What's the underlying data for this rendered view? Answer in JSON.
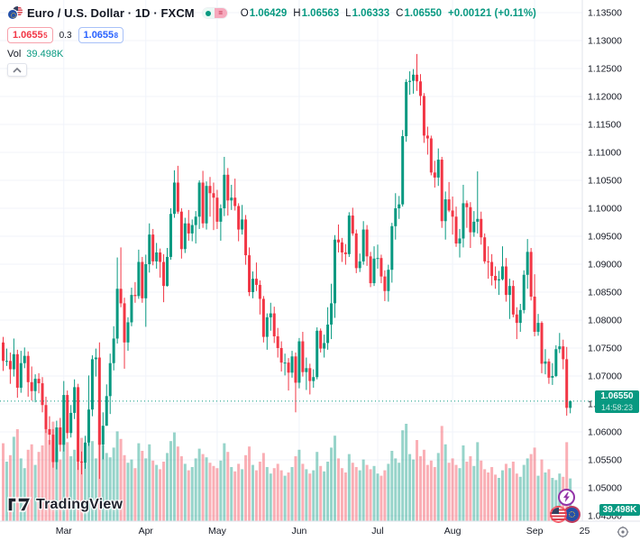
{
  "header": {
    "title": "Euro / U.S. Dollar · 1D · FXCM",
    "status_glyph": "=",
    "ohlc": {
      "o_label": "O",
      "o_value": "1.06429",
      "h_label": "H",
      "h_value": "1.06563",
      "l_label": "L",
      "l_value": "1.06333",
      "c_label": "C",
      "c_value": "1.06550",
      "change": "+0.00121 (+0.11%)"
    },
    "sell": {
      "price": "1.0655",
      "sup": "5"
    },
    "spread": "0.3",
    "buy": {
      "price": "1.0655",
      "sup": "8"
    },
    "vol_label": "Vol",
    "vol_value": "39.498K"
  },
  "price_label": {
    "price": "1.06550",
    "countdown": "14:58:23"
  },
  "vol_axis_label": "39.498K",
  "watermark": "TradingView",
  "colors": {
    "up": "#089981",
    "down": "#f23645",
    "vol_up": "rgba(8,153,129,0.42)",
    "vol_down": "rgba(242,54,69,0.40)",
    "grid": "#f0f3fa",
    "axis_border": "#e0e3eb",
    "axis_text": "#131722",
    "buy_blue": "#2962ff",
    "sell_red": "#f23645",
    "label_bg": "#089981"
  },
  "chart_data": {
    "type": "candlestick",
    "title": "Euro / U.S. Dollar, 1D, FXCM",
    "y_axis_range": [
      1.045,
      1.135
    ],
    "last_price": 1.0655,
    "y_ticks": [
      "1.13500",
      "1.13000",
      "1.12500",
      "1.12000",
      "1.11500",
      "1.11000",
      "1.10500",
      "1.10000",
      "1.09500",
      "1.09000",
      "1.08500",
      "1.08000",
      "1.07500",
      "1.07000",
      "1.06500",
      "1.06000",
      "1.05500",
      "1.05000",
      "1.04500"
    ],
    "time_ticks": [
      {
        "label": "Mar",
        "index": 17
      },
      {
        "label": "Apr",
        "index": 40
      },
      {
        "label": "May",
        "index": 60
      },
      {
        "label": "Jun",
        "index": 83
      },
      {
        "label": "Jul",
        "index": 105
      },
      {
        "label": "Aug",
        "index": 126
      },
      {
        "label": "Sep",
        "index": 149
      },
      {
        "label": "25",
        "index": 163
      }
    ],
    "candles": [
      [
        1.076,
        1.077,
        1.0709,
        1.0727
      ],
      [
        1.0727,
        1.0749,
        1.0718,
        1.0727
      ],
      [
        1.0727,
        1.0742,
        1.0686,
        1.0712
      ],
      [
        1.0712,
        1.0767,
        1.0699,
        1.0739
      ],
      [
        1.0739,
        1.0747,
        1.0661,
        1.0679
      ],
      [
        1.0679,
        1.0745,
        1.067,
        1.0723
      ],
      [
        1.0723,
        1.0751,
        1.0714,
        1.0736
      ],
      [
        1.0736,
        1.0744,
        1.0663,
        1.0689
      ],
      [
        1.0689,
        1.0717,
        1.0656,
        1.0673
      ],
      [
        1.0673,
        1.0703,
        1.0653,
        1.0695
      ],
      [
        1.0695,
        1.0705,
        1.0669,
        1.0687
      ],
      [
        1.0687,
        1.0698,
        1.0635,
        1.0648
      ],
      [
        1.0648,
        1.0663,
        1.0598,
        1.0605
      ],
      [
        1.0605,
        1.0628,
        1.0577,
        1.0595
      ],
      [
        1.0595,
        1.0605,
        1.0536,
        1.0546
      ],
      [
        1.0546,
        1.062,
        1.0533,
        1.0608
      ],
      [
        1.0608,
        1.0625,
        1.0565,
        1.0577
      ],
      [
        1.0577,
        1.0691,
        1.0565,
        1.0666
      ],
      [
        1.0666,
        1.0674,
        1.0588,
        1.0598
      ],
      [
        1.0598,
        1.0648,
        1.059,
        1.0634
      ],
      [
        1.0634,
        1.0694,
        1.0623,
        1.068
      ],
      [
        1.068,
        1.0686,
        1.0532,
        1.0547
      ],
      [
        1.0547,
        1.0565,
        1.0524,
        1.0545
      ],
      [
        1.0545,
        1.0593,
        1.0534,
        1.0581
      ],
      [
        1.0581,
        1.0701,
        1.0575,
        1.064
      ],
      [
        1.064,
        1.0737,
        1.0628,
        1.073
      ],
      [
        1.073,
        1.0749,
        1.0699,
        1.0733
      ],
      [
        1.0733,
        1.076,
        1.0516,
        1.0577
      ],
      [
        1.0577,
        1.0635,
        1.0551,
        1.0611
      ],
      [
        1.0611,
        1.0685,
        1.0611,
        1.0664
      ],
      [
        1.0664,
        1.074,
        1.0632,
        1.0723
      ],
      [
        1.0723,
        1.0789,
        1.071,
        1.0767
      ],
      [
        1.0767,
        1.0912,
        1.0758,
        1.0856
      ],
      [
        1.0856,
        1.093,
        1.0823,
        1.083
      ],
      [
        1.083,
        1.084,
        1.0713,
        1.076
      ],
      [
        1.076,
        1.0805,
        1.0745,
        1.0796
      ],
      [
        1.0796,
        1.0858,
        1.0789,
        1.0845
      ],
      [
        1.0845,
        1.0868,
        1.0831,
        1.0843
      ],
      [
        1.0843,
        1.0926,
        1.0838,
        1.0904
      ],
      [
        1.0904,
        1.0913,
        1.0831,
        1.0839
      ],
      [
        1.0839,
        1.0917,
        1.0788,
        1.09
      ],
      [
        1.09,
        1.0973,
        1.0885,
        1.0953
      ],
      [
        1.0953,
        1.0963,
        1.0898,
        1.0905
      ],
      [
        1.0905,
        1.0938,
        1.0892,
        1.0921
      ],
      [
        1.0921,
        1.0928,
        1.0876,
        1.0904
      ],
      [
        1.0904,
        1.0918,
        1.0832,
        1.0861
      ],
      [
        1.0861,
        1.0929,
        1.086,
        1.0913
      ],
      [
        1.0913,
        1.1,
        1.0908,
        1.099
      ],
      [
        1.099,
        1.1068,
        1.0983,
        1.1046
      ],
      [
        1.1046,
        1.1076,
        1.099,
        1.0994
      ],
      [
        1.0994,
        1.1,
        1.091,
        1.0927
      ],
      [
        1.0927,
        1.0983,
        1.092,
        1.0973
      ],
      [
        1.0973,
        1.0997,
        1.0942,
        1.0955
      ],
      [
        1.0955,
        1.098,
        1.0941,
        1.097
      ],
      [
        1.097,
        1.0995,
        1.0937,
        1.0985
      ],
      [
        1.0985,
        1.105,
        1.0963,
        1.1046
      ],
      [
        1.1046,
        1.1067,
        1.0965,
        1.0973
      ],
      [
        1.0973,
        1.1048,
        1.0962,
        1.104
      ],
      [
        1.104,
        1.1056,
        1.0985,
        1.1027
      ],
      [
        1.1027,
        1.1046,
        1.0961,
        1.1019
      ],
      [
        1.1019,
        1.1033,
        1.0963,
        1.0976
      ],
      [
        1.0976,
        1.1007,
        1.0942,
        1.1
      ],
      [
        1.1,
        1.1092,
        1.0986,
        1.106
      ],
      [
        1.106,
        1.1072,
        1.0987,
        1.1014
      ],
      [
        1.1014,
        1.1042,
        1.0997,
        1.1019
      ],
      [
        1.1019,
        1.1053,
        1.0996,
        1.1004
      ],
      [
        1.1004,
        1.1009,
        1.0941,
        1.0962
      ],
      [
        1.0962,
        1.1006,
        1.0953,
        1.098
      ],
      [
        1.098,
        1.0988,
        1.0899,
        1.0916
      ],
      [
        1.0916,
        1.093,
        1.0843,
        1.085
      ],
      [
        1.085,
        1.0887,
        1.0839,
        1.0874
      ],
      [
        1.0874,
        1.0903,
        1.0852,
        1.0863
      ],
      [
        1.0863,
        1.0871,
        1.081,
        1.0838
      ],
      [
        1.0838,
        1.0843,
        1.076,
        1.077
      ],
      [
        1.077,
        1.0812,
        1.0747,
        1.0805
      ],
      [
        1.0805,
        1.0831,
        1.0781,
        1.0812
      ],
      [
        1.0812,
        1.0824,
        1.0759,
        1.0771
      ],
      [
        1.0771,
        1.0786,
        1.0733,
        1.075
      ],
      [
        1.075,
        1.0762,
        1.0708,
        1.0724
      ],
      [
        1.0724,
        1.074,
        1.0701,
        1.0724
      ],
      [
        1.0724,
        1.0732,
        1.0674,
        1.0706
      ],
      [
        1.0706,
        1.0745,
        1.0697,
        1.0735
      ],
      [
        1.0735,
        1.0742,
        1.0635,
        1.0688
      ],
      [
        1.0688,
        1.0768,
        1.0678,
        1.0762
      ],
      [
        1.0762,
        1.0779,
        1.0699,
        1.0707
      ],
      [
        1.0707,
        1.0733,
        1.0675,
        1.0714
      ],
      [
        1.0714,
        1.0722,
        1.0667,
        1.0691
      ],
      [
        1.0691,
        1.0712,
        1.0679,
        1.0698
      ],
      [
        1.0698,
        1.0787,
        1.0694,
        1.0781
      ],
      [
        1.0781,
        1.0785,
        1.0742,
        1.0749
      ],
      [
        1.0749,
        1.0774,
        1.0733,
        1.0759
      ],
      [
        1.0759,
        1.0823,
        1.0747,
        1.0792
      ],
      [
        1.0792,
        1.0865,
        1.0766,
        1.083
      ],
      [
        1.083,
        1.0952,
        1.0804,
        1.0944
      ],
      [
        1.0944,
        1.0971,
        1.0921,
        1.0939
      ],
      [
        1.0939,
        1.0947,
        1.0904,
        1.0921
      ],
      [
        1.0921,
        1.0936,
        1.0899,
        1.0918
      ],
      [
        1.0918,
        1.0993,
        1.0913,
        1.0987
      ],
      [
        1.0987,
        1.1001,
        1.0951,
        1.0955
      ],
      [
        1.0955,
        1.0962,
        1.0884,
        1.0893
      ],
      [
        1.0893,
        1.0919,
        1.0886,
        1.0905
      ],
      [
        1.0905,
        1.0977,
        1.0899,
        1.0962
      ],
      [
        1.0962,
        1.097,
        1.0897,
        1.0914
      ],
      [
        1.0914,
        1.0922,
        1.0859,
        1.0866
      ],
      [
        1.0866,
        1.0932,
        1.0861,
        1.091
      ],
      [
        1.091,
        1.0935,
        1.0892,
        1.0911
      ],
      [
        1.0911,
        1.0917,
        1.0866,
        1.0878
      ],
      [
        1.0878,
        1.0889,
        1.0834,
        1.0852
      ],
      [
        1.0852,
        1.0899,
        1.0833,
        1.089
      ],
      [
        1.089,
        1.0974,
        1.0867,
        1.0968
      ],
      [
        1.0968,
        1.1027,
        1.0944,
        1.1
      ],
      [
        1.1,
        1.1022,
        1.0981,
        1.1007
      ],
      [
        1.1007,
        1.114,
        1.1003,
        1.1129
      ],
      [
        1.1129,
        1.1231,
        1.1119,
        1.1226
      ],
      [
        1.1226,
        1.1245,
        1.1203,
        1.1228
      ],
      [
        1.1228,
        1.1249,
        1.1205,
        1.1239
      ],
      [
        1.1239,
        1.1276,
        1.121,
        1.1227
      ],
      [
        1.1227,
        1.124,
        1.1184,
        1.1201
      ],
      [
        1.1201,
        1.1206,
        1.1117,
        1.113
      ],
      [
        1.113,
        1.1146,
        1.1096,
        1.1125
      ],
      [
        1.1125,
        1.113,
        1.1059,
        1.1064
      ],
      [
        1.1064,
        1.1085,
        1.1037,
        1.1055
      ],
      [
        1.1055,
        1.1107,
        1.104,
        1.1087
      ],
      [
        1.1087,
        1.1092,
        1.0965,
        1.0977
      ],
      [
        1.0977,
        1.103,
        1.0944,
        1.1016
      ],
      [
        1.1016,
        1.1047,
        1.0993,
        1.0996
      ],
      [
        1.0996,
        1.1021,
        1.0953,
        1.0985
      ],
      [
        1.0985,
        1.1003,
        1.0931,
        1.0937
      ],
      [
        1.0937,
        1.0963,
        1.0912,
        1.0946
      ],
      [
        1.0946,
        1.1042,
        1.093,
        1.1009
      ],
      [
        1.1009,
        1.1014,
        1.0965,
        1.1002
      ],
      [
        1.1002,
        1.1011,
        1.0929,
        1.0957
      ],
      [
        1.0957,
        1.0995,
        1.0949,
        1.0976
      ],
      [
        1.0976,
        1.1066,
        1.0955,
        1.0981
      ],
      [
        1.0981,
        1.0994,
        1.0935,
        1.0948
      ],
      [
        1.0948,
        1.0955,
        1.0901,
        1.0905
      ],
      [
        1.0905,
        1.0932,
        1.0874,
        1.0904
      ],
      [
        1.0904,
        1.0918,
        1.0862,
        1.0879
      ],
      [
        1.0879,
        1.0896,
        1.0856,
        1.0871
      ],
      [
        1.0871,
        1.0888,
        1.0845,
        1.0873
      ],
      [
        1.0873,
        1.0932,
        1.0871,
        1.0896
      ],
      [
        1.0896,
        1.0911,
        1.0833,
        1.0845
      ],
      [
        1.0845,
        1.0874,
        1.0802,
        1.0861
      ],
      [
        1.0861,
        1.0871,
        1.0805,
        1.081
      ],
      [
        1.081,
        1.0823,
        1.0766,
        1.0795
      ],
      [
        1.0795,
        1.0829,
        1.0779,
        1.0818
      ],
      [
        1.0818,
        1.0889,
        1.0812,
        1.0881
      ],
      [
        1.0881,
        1.0945,
        1.0856,
        1.0922
      ],
      [
        1.0922,
        1.0929,
        1.0835,
        1.0842
      ],
      [
        1.0842,
        1.0882,
        1.0771,
        1.0779
      ],
      [
        1.0779,
        1.0811,
        1.0772,
        1.0795
      ],
      [
        1.0795,
        1.0798,
        1.0705,
        1.0722
      ],
      [
        1.0722,
        1.0748,
        1.0703,
        1.0726
      ],
      [
        1.0726,
        1.0731,
        1.0686,
        1.0697
      ],
      [
        1.0697,
        1.0723,
        1.0684,
        1.07
      ],
      [
        1.07,
        1.0755,
        1.0698,
        1.0748
      ],
      [
        1.0748,
        1.0777,
        1.0741,
        1.0753
      ],
      [
        1.0753,
        1.0765,
        1.0712,
        1.073
      ],
      [
        1.073,
        1.0752,
        1.0629,
        1.0643
      ],
      [
        1.06429,
        1.06563,
        1.06333,
        1.0655
      ]
    ],
    "volumes": [
      72,
      55,
      61,
      78,
      85,
      58,
      49,
      66,
      71,
      52,
      64,
      70,
      88,
      75,
      92,
      68,
      57,
      81,
      73,
      60,
      66,
      95,
      77,
      62,
      89,
      74,
      58,
      98,
      70,
      63,
      59,
      68,
      83,
      76,
      61,
      54,
      57,
      49,
      72,
      65,
      58,
      71,
      56,
      52,
      48,
      55,
      63,
      74,
      82,
      69,
      60,
      53,
      47,
      50,
      58,
      67,
      62,
      59,
      54,
      51,
      49,
      56,
      72,
      64,
      50,
      46,
      53,
      48,
      61,
      69,
      52,
      47,
      55,
      63,
      50,
      44,
      49,
      53,
      47,
      42,
      45,
      50,
      60,
      66,
      53,
      48,
      44,
      47,
      64,
      51,
      46,
      55,
      68,
      79,
      58,
      49,
      45,
      62,
      54,
      50,
      47,
      57,
      52,
      48,
      51,
      44,
      42,
      47,
      53,
      65,
      58,
      54,
      84,
      90,
      62,
      57,
      75,
      60,
      66,
      52,
      56,
      50,
      63,
      88,
      71,
      54,
      58,
      52,
      49,
      70,
      55,
      60,
      51,
      73,
      56,
      48,
      45,
      50,
      43,
      40,
      47,
      53,
      49,
      55,
      44,
      41,
      52,
      58,
      62,
      68,
      42,
      57,
      45,
      48,
      40,
      38,
      44,
      41,
      73,
      39.498
    ]
  }
}
